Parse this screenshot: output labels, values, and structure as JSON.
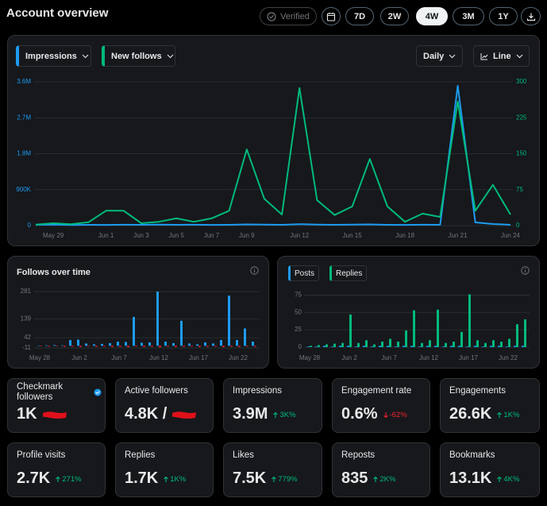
{
  "header": {
    "title": "Account overview",
    "verified": "Verified",
    "ranges": [
      "7D",
      "2W",
      "4W",
      "3M",
      "1Y"
    ],
    "selected_range": "4W"
  },
  "chart_data": [
    {
      "type": "line",
      "controls": {
        "granularity": "Daily",
        "chart_type": "Line"
      },
      "categories": [
        null,
        "May 29",
        null,
        null,
        "Jun 1",
        null,
        "Jun 3",
        null,
        "Jun 5",
        null,
        "Jun 7",
        null,
        "Jun 9",
        null,
        null,
        "Jun 12",
        null,
        null,
        "Jun 15",
        null,
        null,
        "Jun 18",
        null,
        null,
        "Jun 21",
        null,
        null,
        "Jun 24"
      ],
      "series": [
        {
          "name": "Impressions",
          "color": "#1d9bf0",
          "values": [
            20000,
            25000,
            15000,
            20000,
            18000,
            22000,
            20000,
            25000,
            20000,
            22000,
            18000,
            20000,
            30000,
            25000,
            20000,
            35000,
            25000,
            20000,
            25000,
            30000,
            20000,
            18000,
            22000,
            20000,
            3500000,
            80000,
            40000,
            20000
          ]
        },
        {
          "name": "New follows",
          "color": "#00ba7c",
          "axis": "y2",
          "values": [
            2,
            5,
            3,
            7,
            31,
            31,
            5,
            8,
            15,
            8,
            15,
            31,
            159,
            56,
            23,
            287,
            53,
            22,
            40,
            139,
            40,
            8,
            25,
            18,
            259,
            31,
            85,
            23
          ]
        }
      ],
      "ylim": [
        0,
        3600000
      ],
      "yticks": [
        0,
        {
          "value": 900000,
          "label": "900K"
        },
        {
          "value": 1800000,
          "label": "1.8M"
        },
        {
          "value": 2700000,
          "label": "2.7M"
        },
        {
          "value": 3600000,
          "label": "3.6M"
        }
      ],
      "y2lim": [
        0,
        300
      ],
      "y2ticks": [
        0,
        75,
        150,
        225,
        300
      ],
      "grid": true
    },
    {
      "type": "bar",
      "title": "Follows over time",
      "categories": [
        "May 28",
        null,
        null,
        null,
        null,
        "Jun 2",
        null,
        null,
        null,
        null,
        "Jun 7",
        null,
        null,
        null,
        null,
        "Jun 12",
        null,
        null,
        null,
        null,
        "Jun 17",
        null,
        null,
        null,
        null,
        "Jun 22",
        null,
        null
      ],
      "series": [
        {
          "color": "#1d9bf0",
          "values": [
            2,
            3,
            4,
            3,
            30,
            32,
            12,
            8,
            10,
            14,
            22,
            20,
            150,
            16,
            18,
            281,
            22,
            14,
            130,
            12,
            8,
            18,
            12,
            30,
            260,
            30,
            90,
            22
          ]
        },
        {
          "color": "#f4212e",
          "values": [
            -3,
            -4,
            -3,
            -5,
            -4,
            -6,
            -3,
            -5,
            -4,
            -6,
            -5,
            -7,
            -4,
            -6,
            -5,
            -8,
            -4,
            -6,
            -5,
            -4,
            -6,
            -5,
            -4,
            -7,
            -5,
            -6,
            -4,
            -5
          ]
        }
      ],
      "ylim": [
        -11,
        281
      ],
      "yticks": [
        -11,
        42,
        139,
        281
      ],
      "grid": true
    },
    {
      "type": "bar",
      "categories": [
        "May 28",
        null,
        null,
        null,
        null,
        "Jun 2",
        null,
        null,
        null,
        null,
        "Jun 7",
        null,
        null,
        null,
        null,
        "Jun 12",
        null,
        null,
        null,
        null,
        "Jun 17",
        null,
        null,
        null,
        null,
        "Jun 22",
        null,
        null
      ],
      "series": [
        {
          "name": "Posts",
          "color": "#1d9bf0",
          "values": [
            1,
            1,
            2,
            1,
            2,
            2,
            1,
            2,
            1,
            2,
            2,
            1,
            2,
            2,
            1,
            2,
            2,
            1,
            2,
            2,
            1,
            2,
            1,
            2,
            2,
            1,
            2,
            2
          ]
        },
        {
          "name": "Replies",
          "color": "#00ba7c",
          "values": [
            2,
            3,
            4,
            5,
            6,
            47,
            6,
            10,
            4,
            8,
            12,
            8,
            24,
            53,
            6,
            10,
            54,
            6,
            8,
            22,
            76,
            10,
            6,
            10,
            8,
            12,
            33,
            40
          ]
        }
      ],
      "ylim": [
        0,
        80
      ],
      "yticks": [
        0,
        25,
        50,
        75
      ],
      "grid": true
    }
  ],
  "cards": [
    {
      "label": "Checkmark followers",
      "value": "1K"
    },
    {
      "label": "Active followers",
      "value": "4.8K /"
    },
    {
      "label": "Impressions",
      "value": "3.9M",
      "change": "3K%",
      "direction": "up"
    },
    {
      "label": "Engagement rate",
      "value": "0.6%",
      "change": "-62%",
      "direction": "down"
    },
    {
      "label": "Engagements",
      "value": "26.6K",
      "change": "1K%",
      "direction": "up"
    },
    {
      "label": "Profile visits",
      "value": "2.7K",
      "change": "271%",
      "direction": "up"
    },
    {
      "label": "Replies",
      "value": "1.7K",
      "change": "1K%",
      "direction": "up"
    },
    {
      "label": "Likes",
      "value": "7.5K",
      "change": "779%",
      "direction": "up"
    },
    {
      "label": "Reposts",
      "value": "835",
      "change": "2K%",
      "direction": "up"
    },
    {
      "label": "Bookmarks",
      "value": "13.1K",
      "change": "4K%",
      "direction": "up"
    }
  ]
}
